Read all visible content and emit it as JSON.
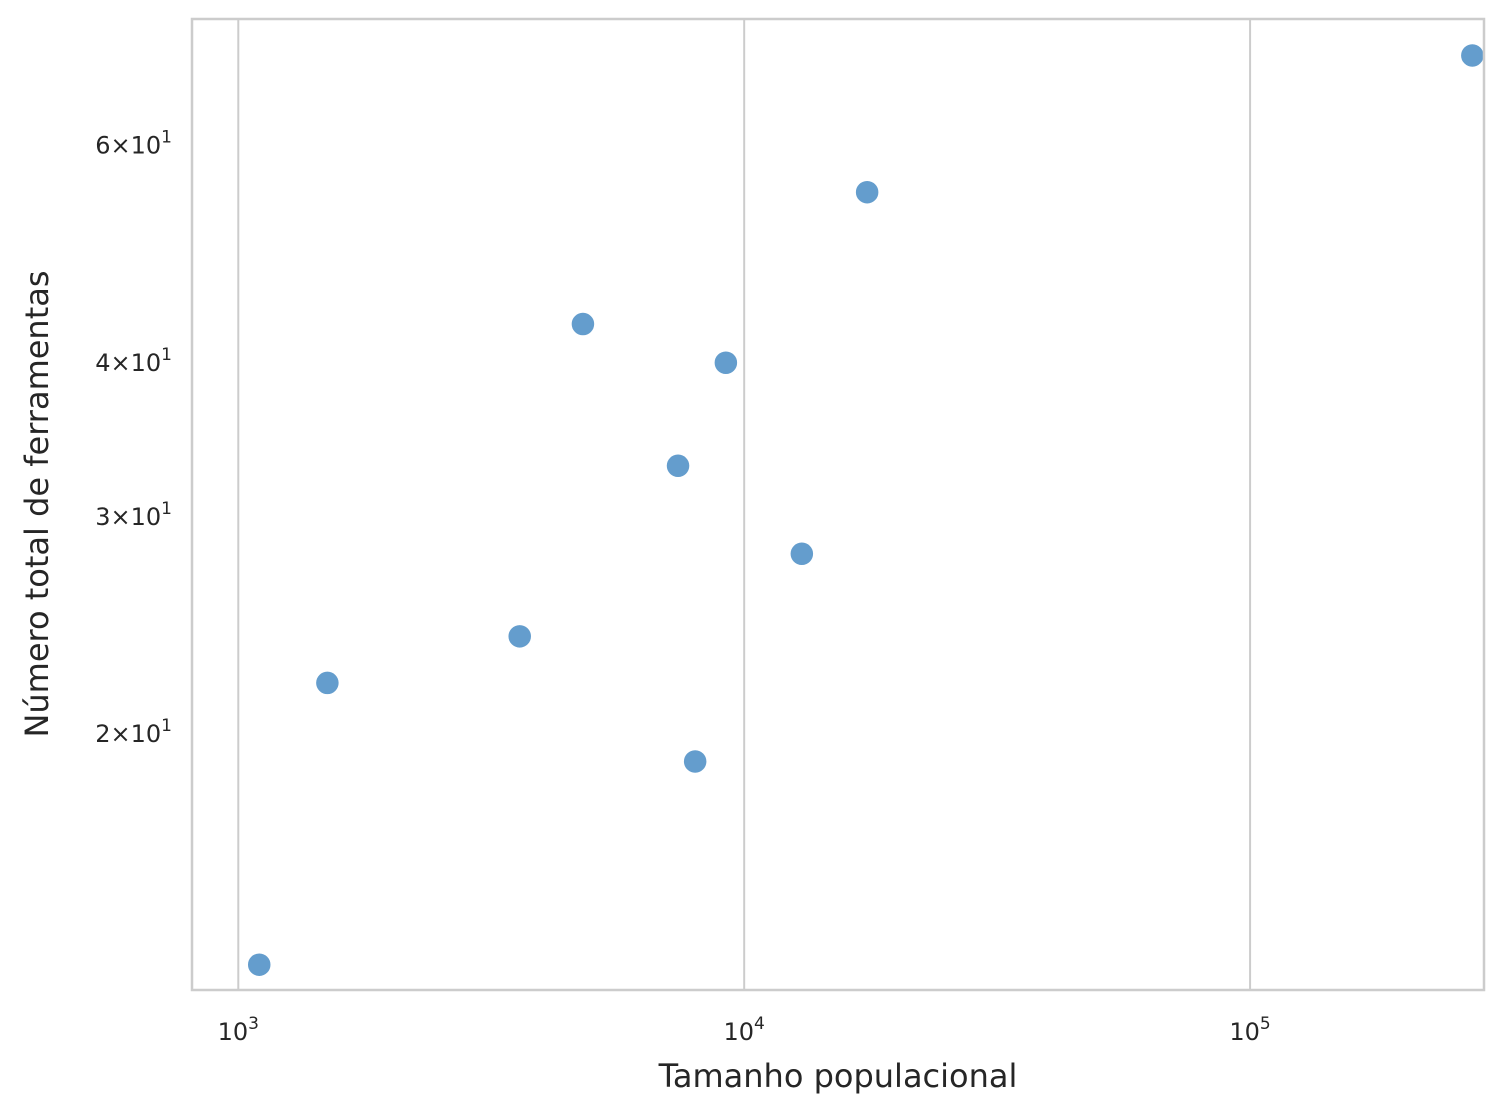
{
  "chart_data": {
    "type": "scatter",
    "title": "",
    "xlabel": "Tamanho populacional",
    "ylabel": "Número total de ferramentas",
    "x_scale": "log",
    "y_scale": "log",
    "xlim": [
      810,
      290000
    ],
    "ylim": [
      12.4,
      76
    ],
    "grid": {
      "x": true,
      "y": false
    },
    "marker_color": "#4f90c6",
    "frame_color": "#cccccc",
    "x_ticks": [
      {
        "value": 1000,
        "base": "10",
        "exp": "3"
      },
      {
        "value": 10000,
        "base": "10",
        "exp": "4"
      },
      {
        "value": 100000,
        "base": "10",
        "exp": "5"
      }
    ],
    "y_ticks": [
      {
        "value": 20,
        "mant": "2",
        "base": "10",
        "exp": "1"
      },
      {
        "value": 30,
        "mant": "3",
        "base": "10",
        "exp": "1"
      },
      {
        "value": 40,
        "mant": "4",
        "base": "10",
        "exp": "1"
      },
      {
        "value": 60,
        "mant": "6",
        "base": "10",
        "exp": "1"
      }
    ],
    "points": [
      {
        "x": 1100,
        "y": 13
      },
      {
        "x": 1500,
        "y": 22
      },
      {
        "x": 3600,
        "y": 24
      },
      {
        "x": 4800,
        "y": 43
      },
      {
        "x": 7400,
        "y": 33
      },
      {
        "x": 8000,
        "y": 19
      },
      {
        "x": 9200,
        "y": 40
      },
      {
        "x": 13000,
        "y": 28
      },
      {
        "x": 17500,
        "y": 55
      },
      {
        "x": 275000,
        "y": 71
      }
    ]
  }
}
